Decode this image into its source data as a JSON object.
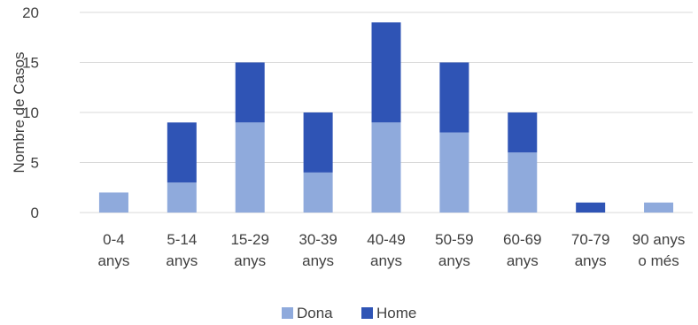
{
  "chart_data": {
    "type": "bar",
    "stacked": true,
    "categories": [
      [
        "0-4",
        "anys"
      ],
      [
        "5-14",
        "anys"
      ],
      [
        "15-29",
        "anys"
      ],
      [
        "30-39",
        "anys"
      ],
      [
        "40-49",
        "anys"
      ],
      [
        "50-59",
        "anys"
      ],
      [
        "60-69",
        "anys"
      ],
      [
        "70-79",
        "anys"
      ],
      [
        "90 anys",
        "o més"
      ]
    ],
    "series": [
      {
        "name": "Dona",
        "color": "#8FAADC",
        "values": [
          2,
          3,
          9,
          4,
          9,
          8,
          6,
          0,
          1
        ]
      },
      {
        "name": "Home",
        "color": "#2F54B5",
        "values": [
          0,
          6,
          6,
          6,
          10,
          7,
          4,
          1,
          0
        ]
      }
    ],
    "ylabel": "Nombre de Casos",
    "ylim": [
      0,
      20
    ],
    "yticks": [
      0,
      5,
      10,
      15,
      20
    ],
    "grid": true,
    "legend": "bottom"
  }
}
